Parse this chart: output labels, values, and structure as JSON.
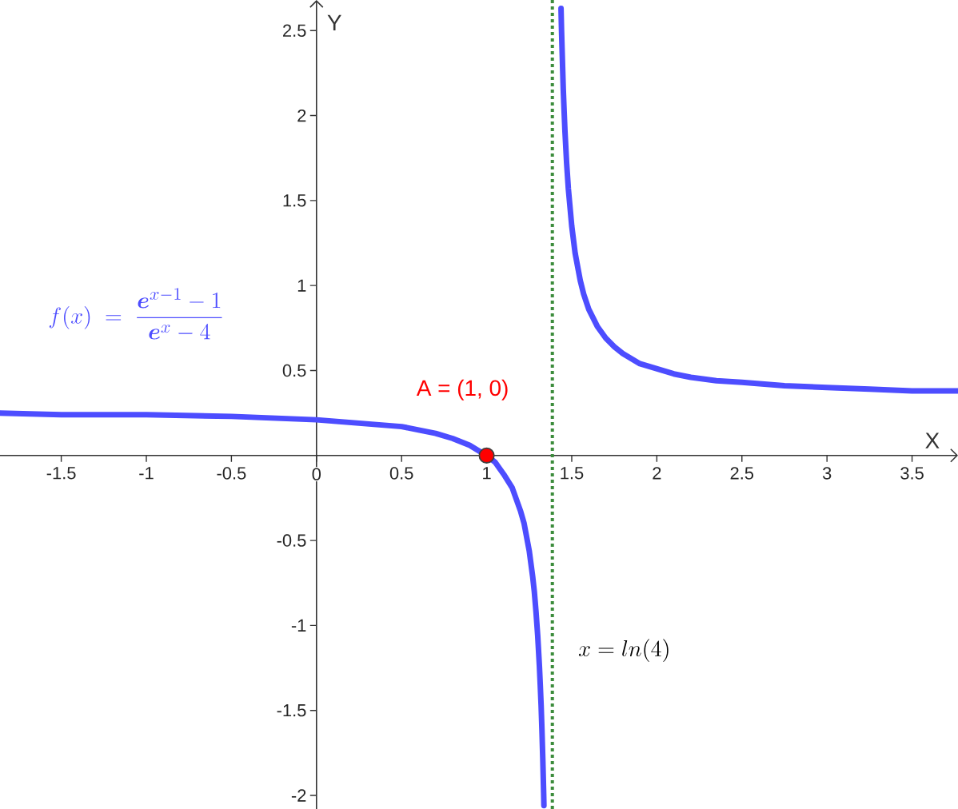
{
  "chart_data": {
    "type": "line",
    "xlabel": "X",
    "ylabel": "Y",
    "xlim": [
      -1.86,
      3.77
    ],
    "ylim": [
      -2.08,
      2.68
    ],
    "xticks": [
      -1.5,
      -1,
      -0.5,
      0,
      0.5,
      1,
      1.5,
      2,
      2.5,
      3,
      3.5
    ],
    "yticks": [
      -2,
      -1.5,
      -1,
      -0.5,
      0.5,
      1,
      1.5,
      2,
      2.5
    ],
    "series": [
      {
        "color": "#4d4dff",
        "x": [
          -1.86,
          -1.5,
          -1,
          -0.5,
          0,
          0.25,
          0.5,
          0.6,
          0.7,
          0.8,
          0.9,
          0.95,
          1,
          1.05,
          1.1,
          1.15,
          1.2,
          1.22,
          1.25,
          1.27,
          1.28,
          1.29,
          1.3,
          1.31,
          1.315,
          1.32,
          1.325,
          1.33,
          1.335,
          1.3365,
          1.386,
          1.437,
          1.44,
          1.45,
          1.455,
          1.46,
          1.47,
          1.48,
          1.5,
          1.52,
          1.55,
          1.57,
          1.6,
          1.62,
          1.65,
          1.7,
          1.75,
          1.8,
          1.9,
          2,
          2.1,
          2.2,
          2.35,
          2.5,
          2.75,
          3,
          3.25,
          3.5,
          3.77
        ],
        "values": [
          0.25,
          0.24,
          0.24,
          0.23,
          0.21,
          0.19,
          0.17,
          0.15,
          0.13,
          0.1,
          0.06,
          0.03,
          0,
          -0.04,
          -0.11,
          -0.19,
          -0.33,
          -0.4,
          -0.56,
          -0.71,
          -0.8,
          -0.92,
          -1.06,
          -1.24,
          -1.35,
          -1.47,
          -1.62,
          -1.79,
          -1.99,
          -2.06,
          null,
          2.63,
          2.5,
          2.16,
          2.03,
          1.91,
          1.72,
          1.57,
          1.35,
          1.19,
          1.03,
          0.95,
          0.86,
          0.82,
          0.76,
          0.69,
          0.64,
          0.6,
          0.54,
          0.51,
          0.48,
          0.46,
          0.44,
          0.43,
          0.41,
          0.4,
          0.39,
          0.38,
          0.38
        ]
      },
      {
        "type": "scatter",
        "name": "A = (1, 0)",
        "color": "#ff0000",
        "marker": "circle",
        "x": [
          1
        ],
        "values": [
          0
        ]
      }
    ],
    "ref_lines": [
      {
        "axis": "x",
        "value": 1.386,
        "label": "x = ln(4)",
        "color": "#3c8c3c",
        "line_style": "dotted"
      }
    ],
    "annotations": [
      "f(x) \\;=\\; \\dfrac{\\boldsymbol{e}^{x-1}-1}{\\boldsymbol{e}^{x}-4}"
    ]
  }
}
